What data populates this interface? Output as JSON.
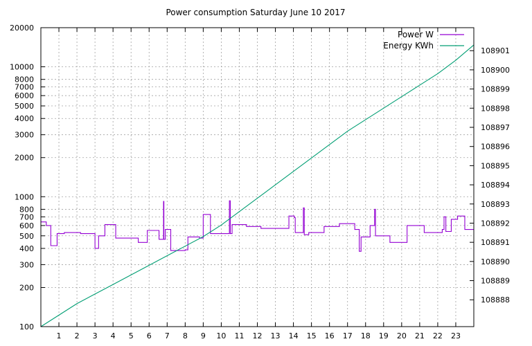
{
  "chart_data": {
    "type": "line",
    "title": "Power consumption Saturday June 10 2017",
    "xlabel": "",
    "ylabel": "",
    "x_ticks": [
      1,
      2,
      3,
      4,
      5,
      6,
      7,
      8,
      9,
      10,
      11,
      12,
      13,
      14,
      15,
      16,
      17,
      18,
      19,
      20,
      21,
      22,
      23
    ],
    "xlim": [
      0,
      24
    ],
    "y_left": {
      "scale": "log",
      "lim": [
        100,
        20000
      ],
      "ticks": [
        100,
        200,
        300,
        400,
        500,
        600,
        700,
        800,
        1000,
        2000,
        3000,
        4000,
        5000,
        6000,
        7000,
        8000,
        10000,
        20000
      ]
    },
    "y_right": {
      "scale": "linear",
      "lim": [
        108886.6,
        108902.2
      ],
      "ticks": [
        108888,
        108889,
        108890,
        108891,
        108892,
        108893,
        108894,
        108895,
        108896,
        108897,
        108898,
        108899,
        108900,
        108901
      ]
    },
    "grid": true,
    "legend_position": "top-right",
    "series": [
      {
        "name": "Power W",
        "axis": "left",
        "color": "#9400d3",
        "shape": "steps",
        "points": [
          [
            0.0,
            640
          ],
          [
            0.3,
            600
          ],
          [
            0.55,
            420
          ],
          [
            0.9,
            520
          ],
          [
            1.3,
            530
          ],
          [
            2.2,
            520
          ],
          [
            3.0,
            400
          ],
          [
            3.2,
            500
          ],
          [
            3.55,
            610
          ],
          [
            4.15,
            480
          ],
          [
            5.4,
            445
          ],
          [
            5.9,
            550
          ],
          [
            6.55,
            470
          ],
          [
            6.8,
            920
          ],
          [
            6.82,
            470
          ],
          [
            6.9,
            560
          ],
          [
            7.2,
            385
          ],
          [
            8.0,
            390
          ],
          [
            8.15,
            490
          ],
          [
            8.8,
            480
          ],
          [
            9.0,
            730
          ],
          [
            9.4,
            520
          ],
          [
            10.0,
            520
          ],
          [
            10.45,
            930
          ],
          [
            10.5,
            520
          ],
          [
            10.6,
            610
          ],
          [
            11.4,
            590
          ],
          [
            12.2,
            570
          ],
          [
            13.75,
            710
          ],
          [
            14.05,
            690
          ],
          [
            14.1,
            530
          ],
          [
            14.55,
            820
          ],
          [
            14.6,
            510
          ],
          [
            14.85,
            530
          ],
          [
            15.7,
            590
          ],
          [
            16.55,
            620
          ],
          [
            17.4,
            560
          ],
          [
            17.65,
            380
          ],
          [
            17.75,
            490
          ],
          [
            18.25,
            600
          ],
          [
            18.5,
            800
          ],
          [
            18.55,
            500
          ],
          [
            19.35,
            445
          ],
          [
            20.3,
            600
          ],
          [
            21.25,
            530
          ],
          [
            22.25,
            560
          ],
          [
            22.35,
            700
          ],
          [
            22.45,
            540
          ],
          [
            22.75,
            670
          ],
          [
            23.1,
            710
          ],
          [
            23.5,
            560
          ],
          [
            24.0,
            560
          ]
        ]
      },
      {
        "name": "Energy KWh",
        "axis": "right",
        "color": "#009e73",
        "shape": "line",
        "points": [
          [
            0,
            108886.6
          ],
          [
            1,
            108887.2
          ],
          [
            2,
            108887.8
          ],
          [
            3,
            108888.3
          ],
          [
            4,
            108888.8
          ],
          [
            5,
            108889.3
          ],
          [
            6,
            108889.8
          ],
          [
            7,
            108890.3
          ],
          [
            8,
            108890.8
          ],
          [
            9,
            108891.3
          ],
          [
            10,
            108891.9
          ],
          [
            11,
            108892.6
          ],
          [
            12,
            108893.3
          ],
          [
            13,
            108894.0
          ],
          [
            14,
            108894.7
          ],
          [
            15,
            108895.4
          ],
          [
            16,
            108896.1
          ],
          [
            17,
            108896.8
          ],
          [
            18,
            108897.4
          ],
          [
            19,
            108898.0
          ],
          [
            20,
            108898.6
          ],
          [
            21,
            108899.2
          ],
          [
            22,
            108899.8
          ],
          [
            23,
            108900.5
          ],
          [
            24,
            108901.3
          ]
        ]
      }
    ]
  }
}
